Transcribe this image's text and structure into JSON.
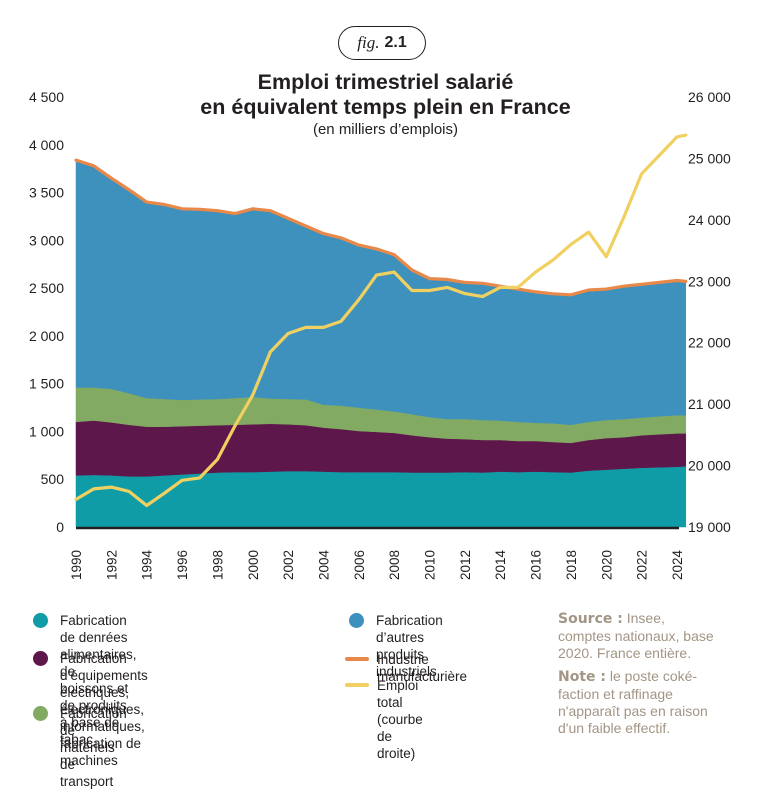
{
  "figure": {
    "fig_word": "fig.",
    "fig_number": "2.1"
  },
  "header": {
    "title_line1": "Emploi trimestriel salarié",
    "title_line2": "en équivalent temps plein en France",
    "subtitle": "(en milliers d’emplois)"
  },
  "chart_data": {
    "type": "area",
    "title": "Emploi trimestriel salarié en équivalent temps plein en France",
    "subtitle": "(en milliers d’emplois)",
    "xlabel": "",
    "ylabel_left": "",
    "ylabel_right": "",
    "xlim": [
      1990,
      2024.5
    ],
    "ylim_left": [
      0,
      4500
    ],
    "ylim_right": [
      19000,
      26000
    ],
    "left_ticks": [
      "0",
      "500",
      "1 000",
      "1 500",
      "2 000",
      "2 500",
      "3 000",
      "3 500",
      "4 000",
      "4 500"
    ],
    "left_tick_values": [
      0,
      500,
      1000,
      1500,
      2000,
      2500,
      3000,
      3500,
      4000,
      4500
    ],
    "right_ticks": [
      "19 000",
      "20 000",
      "21 000",
      "22 000",
      "23 000",
      "24 000",
      "25 000",
      "26 000"
    ],
    "right_tick_values": [
      19000,
      20000,
      21000,
      22000,
      23000,
      24000,
      25000,
      26000
    ],
    "x_ticks": [
      "1990",
      "1992",
      "1994",
      "1996",
      "1998",
      "2000",
      "2002",
      "2004",
      "2006",
      "2008",
      "2010",
      "2012",
      "2014",
      "2016",
      "2018",
      "2020",
      "2022",
      "2024"
    ],
    "grid": false,
    "stacked": true,
    "x": [
      1990,
      1991,
      1992,
      1993,
      1994,
      1995,
      1996,
      1997,
      1998,
      1999,
      2000,
      2001,
      2002,
      2003,
      2004,
      2005,
      2006,
      2007,
      2008,
      2009,
      2010,
      2011,
      2012,
      2013,
      2014,
      2015,
      2016,
      2017,
      2018,
      2019,
      2020,
      2021,
      2022,
      2023,
      2024,
      2024.5
    ],
    "series": [
      {
        "name": "Fabrication de denrées alimentaires, de boissons et de produits à base de tabac",
        "axis": "left",
        "kind": "area",
        "color": "#109ca6",
        "values": [
          540,
          545,
          540,
          530,
          530,
          540,
          550,
          560,
          570,
          575,
          575,
          580,
          585,
          585,
          580,
          575,
          575,
          575,
          575,
          570,
          570,
          570,
          575,
          570,
          580,
          575,
          580,
          575,
          570,
          590,
          600,
          610,
          620,
          625,
          630,
          635
        ]
      },
      {
        "name": "Fabrication d’équipements électriques, électroniques, informatiques, fabrication de machines",
        "axis": "left",
        "kind": "area",
        "color": "#5e174b",
        "values": [
          560,
          570,
          555,
          540,
          520,
          510,
          505,
          500,
          495,
          495,
          500,
          500,
          490,
          480,
          460,
          450,
          430,
          420,
          410,
          390,
          370,
          355,
          345,
          340,
          330,
          325,
          320,
          315,
          310,
          320,
          330,
          330,
          340,
          345,
          350,
          345
        ]
      },
      {
        "name": "Fabrication de matériels de transport",
        "axis": "left",
        "kind": "area",
        "color": "#82aa62",
        "values": [
          360,
          345,
          350,
          330,
          300,
          290,
          275,
          275,
          275,
          280,
          285,
          265,
          265,
          270,
          240,
          245,
          245,
          235,
          225,
          220,
          210,
          205,
          210,
          210,
          205,
          200,
          190,
          195,
          190,
          190,
          190,
          190,
          185,
          190,
          190,
          190
        ]
      },
      {
        "name": "Fabrication d’autres produits industriels",
        "axis": "left",
        "kind": "area",
        "color": "#3e91bd",
        "values": [
          2380,
          2320,
          2205,
          2130,
          2050,
          2035,
          2000,
          1990,
          1970,
          1930,
          1970,
          1965,
          1890,
          1815,
          1790,
          1755,
          1700,
          1680,
          1640,
          1510,
          1450,
          1460,
          1430,
          1430,
          1405,
          1390,
          1370,
          1355,
          1360,
          1380,
          1370,
          1390,
          1395,
          1400,
          1410,
          1400
        ]
      },
      {
        "name": "Industrie manufacturière",
        "axis": "left",
        "kind": "line",
        "color": "#e8894a",
        "values": [
          3840,
          3780,
          3650,
          3530,
          3400,
          3375,
          3330,
          3325,
          3310,
          3280,
          3330,
          3310,
          3230,
          3150,
          3070,
          3025,
          2950,
          2910,
          2850,
          2690,
          2600,
          2590,
          2560,
          2550,
          2520,
          2490,
          2460,
          2440,
          2430,
          2480,
          2490,
          2520,
          2540,
          2560,
          2580,
          2570
        ]
      },
      {
        "name": "Emploi total (courbe de droite)",
        "axis": "right",
        "kind": "line",
        "color": "#f0d060",
        "values": [
          19450,
          19620,
          19650,
          19580,
          19350,
          19550,
          19760,
          19800,
          20100,
          20650,
          21150,
          21850,
          22150,
          22250,
          22250,
          22350,
          22700,
          23100,
          23150,
          22850,
          22850,
          22900,
          22800,
          22750,
          22900,
          22900,
          23150,
          23350,
          23600,
          23800,
          23400,
          24050,
          24750,
          25050,
          25350,
          25380
        ]
      }
    ],
    "legend_position": "bottom"
  },
  "legend": {
    "items": [
      {
        "label": "Fabrication de denrées alimentaires, de boissons et de produits à base de tabac",
        "marker": "dot",
        "color": "#109ca6"
      },
      {
        "label": "Fabrication d’équipements électriques, électroniques, informatiques, fabrication de machines",
        "marker": "dot",
        "color": "#5e174b"
      },
      {
        "label": "Fabrication de matériels de transport",
        "marker": "dot",
        "color": "#82aa62"
      },
      {
        "label": "Fabrication d’autres produits industriels",
        "marker": "dot",
        "color": "#3e91bd"
      },
      {
        "label": "Industrie manufacturière",
        "marker": "line",
        "color": "#e8894a"
      },
      {
        "label": "Emploi total (courbe de droite)",
        "marker": "line",
        "color": "#f0d060"
      }
    ],
    "label_lines": {
      "item0": [
        "Fabrication de denrées alimentaires, de",
        "boissons et de produits à base de tabac"
      ],
      "item1": [
        "Fabrication d’équipements électriques,",
        "électroniques, informatiques,",
        "fabrication de machines"
      ],
      "item2": [
        "Fabrication de matériels de transport"
      ],
      "item3": [
        "Fabrication d’autres",
        "produits industriels"
      ],
      "item4": [
        "Industrie manufacturière"
      ],
      "item5": [
        "Emploi total",
        "(courbe de droite)"
      ]
    }
  },
  "notes": {
    "source_label": "Source :",
    "source_text_lines": [
      " Insee,",
      "comptes nationaux, base",
      "2020. France entière."
    ],
    "note_label": "Note :",
    "note_text_lines": [
      " le poste coké-",
      "faction et raffinage",
      "n'apparaît pas en raison",
      "d'un faible effectif."
    ]
  }
}
